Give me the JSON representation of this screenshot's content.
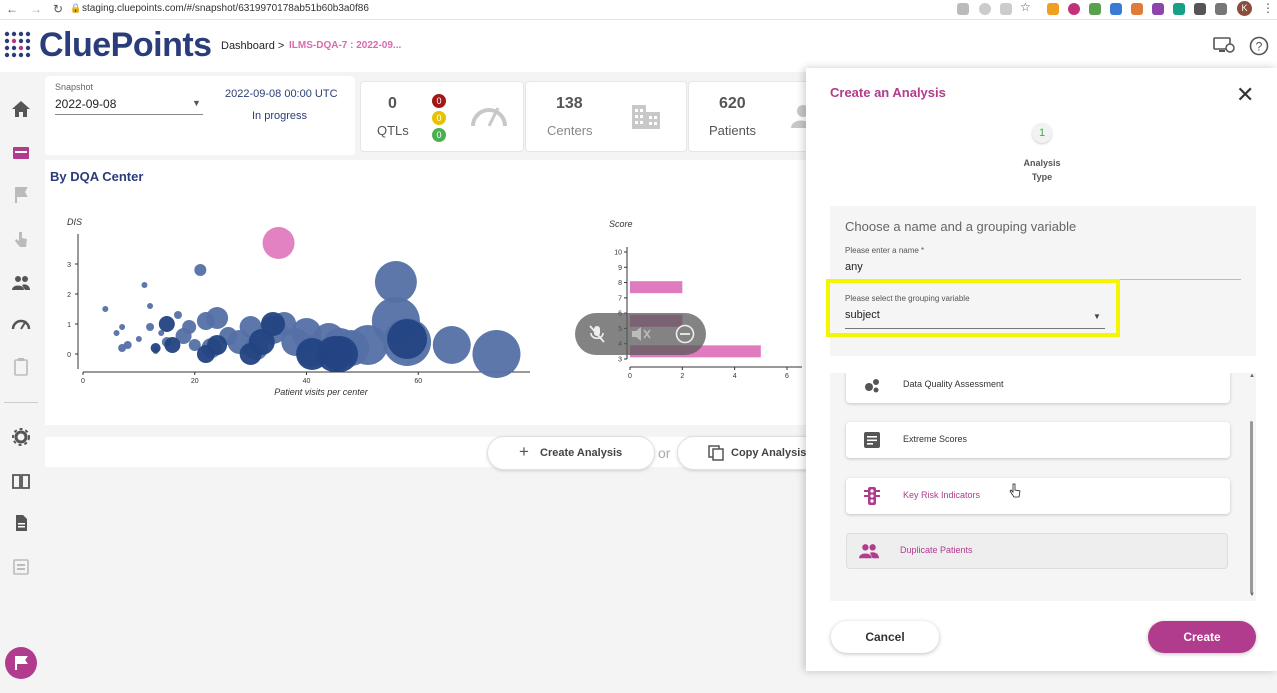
{
  "browser": {
    "url": "staging.cluepoints.com/#/snapshot/6319970178ab51b60b3a0f86",
    "avatar_letter": "K"
  },
  "header": {
    "logo": "CluePoints",
    "breadcrumb_dashboard": "Dashboard >",
    "breadcrumb_current": "ILMS-DQA-7 : 2022-09..."
  },
  "snapshot": {
    "label": "Snapshot",
    "value": "2022-09-08",
    "datetime": "2022-09-08 00:00 UTC",
    "status": "In progress"
  },
  "stats": {
    "qtls_value": "0",
    "qtls_label": "QTLs",
    "badges": [
      "0",
      "0",
      "0"
    ],
    "badge_colors": [
      "#a01818",
      "#e8c100",
      "#4caf50"
    ],
    "centers_value": "138",
    "centers_label": "Centers",
    "patients_value": "620",
    "patients_label": "Patients"
  },
  "panel": {
    "title": "By DQA Center"
  },
  "chart_data": [
    {
      "type": "scatter",
      "ylabel": "DIS",
      "xlabel": "Patient visits per center",
      "xlim": [
        0,
        80
      ],
      "ylim": [
        0,
        4
      ],
      "xticks": [
        "0",
        "20",
        "40",
        "60"
      ],
      "yticks": [
        "0",
        "1",
        "2",
        "3"
      ],
      "series": [
        {
          "color": "#5470a6",
          "points": [
            {
              "x": 4,
              "y": 1.5,
              "r": 3
            },
            {
              "x": 6,
              "y": 0.7,
              "r": 3
            },
            {
              "x": 7,
              "y": 0.9,
              "r": 3
            },
            {
              "x": 7,
              "y": 0.2,
              "r": 4
            },
            {
              "x": 8,
              "y": 0.3,
              "r": 4
            },
            {
              "x": 10,
              "y": 0.5,
              "r": 3
            },
            {
              "x": 11,
              "y": 2.3,
              "r": 3
            },
            {
              "x": 12,
              "y": 1.6,
              "r": 3
            },
            {
              "x": 12,
              "y": 0.9,
              "r": 4
            },
            {
              "x": 13,
              "y": 0.1,
              "r": 3
            },
            {
              "x": 14,
              "y": 0.7,
              "r": 3
            },
            {
              "x": 15,
              "y": 0.4,
              "r": 5
            },
            {
              "x": 17,
              "y": 1.3,
              "r": 4
            },
            {
              "x": 18,
              "y": 0.6,
              "r": 8
            },
            {
              "x": 19,
              "y": 0.9,
              "r": 7
            },
            {
              "x": 20,
              "y": 0.3,
              "r": 6
            },
            {
              "x": 21,
              "y": 2.8,
              "r": 6
            },
            {
              "x": 22,
              "y": 1.1,
              "r": 9
            },
            {
              "x": 23,
              "y": 0.2,
              "r": 10
            },
            {
              "x": 24,
              "y": 1.2,
              "r": 11
            },
            {
              "x": 26,
              "y": 0.6,
              "r": 9
            },
            {
              "x": 28,
              "y": 0.4,
              "r": 12
            },
            {
              "x": 30,
              "y": 0.9,
              "r": 11
            },
            {
              "x": 31,
              "y": 0.2,
              "r": 12
            },
            {
              "x": 34,
              "y": 0.8,
              "r": 14
            },
            {
              "x": 36,
              "y": 1.0,
              "r": 12
            },
            {
              "x": 38,
              "y": 0.4,
              "r": 14
            },
            {
              "x": 40,
              "y": 0.7,
              "r": 15
            },
            {
              "x": 41,
              "y": 0.1,
              "r": 16
            },
            {
              "x": 44,
              "y": 0.5,
              "r": 16
            },
            {
              "x": 46,
              "y": 0.3,
              "r": 17
            },
            {
              "x": 48,
              "y": 0.2,
              "r": 18
            },
            {
              "x": 51,
              "y": 0.3,
              "r": 20
            },
            {
              "x": 56,
              "y": 2.4,
              "r": 21
            },
            {
              "x": 56,
              "y": 1.1,
              "r": 24
            },
            {
              "x": 58,
              "y": 0.4,
              "r": 24
            },
            {
              "x": 66,
              "y": 0.3,
              "r": 19
            },
            {
              "x": 74,
              "y": 0.0,
              "r": 24
            }
          ]
        },
        {
          "color": "#234382",
          "points": [
            {
              "x": 13,
              "y": 0.2,
              "r": 5
            },
            {
              "x": 15,
              "y": 1.0,
              "r": 8
            },
            {
              "x": 16,
              "y": 0.3,
              "r": 8
            },
            {
              "x": 22,
              "y": 0.0,
              "r": 9
            },
            {
              "x": 24,
              "y": 0.3,
              "r": 10
            },
            {
              "x": 30,
              "y": 0.0,
              "r": 11
            },
            {
              "x": 32,
              "y": 0.4,
              "r": 13
            },
            {
              "x": 34,
              "y": 1.0,
              "r": 12
            },
            {
              "x": 41,
              "y": 0.0,
              "r": 16
            },
            {
              "x": 45,
              "y": 0.0,
              "r": 18
            },
            {
              "x": 46,
              "y": 0.0,
              "r": 18
            },
            {
              "x": 58,
              "y": 0.5,
              "r": 20
            }
          ]
        },
        {
          "color": "#e07bbf",
          "points": [
            {
              "x": 35,
              "y": 3.7,
              "r": 16
            }
          ]
        }
      ]
    },
    {
      "type": "bar",
      "ylabel": "Score",
      "orientation": "horizontal",
      "xlim": [
        0,
        6
      ],
      "ylim": [
        3,
        10
      ],
      "xticks": [
        "0",
        "2",
        "4",
        "6"
      ],
      "yticks": [
        "3",
        "4",
        "5",
        "6",
        "7",
        "8",
        "9",
        "10"
      ],
      "color": "#e07bbf",
      "bars": [
        {
          "y": 7.7,
          "value": 2.0
        },
        {
          "y": 5.5,
          "value": 2.0
        },
        {
          "y": 3.5,
          "value": 5.0
        }
      ]
    }
  ],
  "actions": {
    "create_analysis": "Create Analysis",
    "or": "or",
    "copy_analysis": "Copy Analysis"
  },
  "modal": {
    "title": "Create an Analysis",
    "step_number": "1",
    "step_label_1": "Analysis",
    "step_label_2": "Type",
    "section_title": "Choose a name and a grouping variable",
    "name_label": "Please enter a name *",
    "name_value": "any",
    "grouping_label": "Please select the grouping variable",
    "grouping_value": "subject",
    "types": [
      {
        "label": "Data Quality Assessment",
        "icon": "dots-cluster-icon",
        "color": "#333"
      },
      {
        "label": "Extreme Scores",
        "icon": "document-lines-icon",
        "color": "#333"
      },
      {
        "label": "Key Risk Indicators",
        "icon": "traffic-light-icon",
        "color": "#b13b8d"
      },
      {
        "label": "Duplicate Patients",
        "icon": "people-icon",
        "color": "#b13b8d"
      }
    ],
    "cancel": "Cancel",
    "create": "Create"
  },
  "colors": {
    "brand": "#b13b8d",
    "logo": "#2a3d7a",
    "highlight": "#f5f500"
  }
}
